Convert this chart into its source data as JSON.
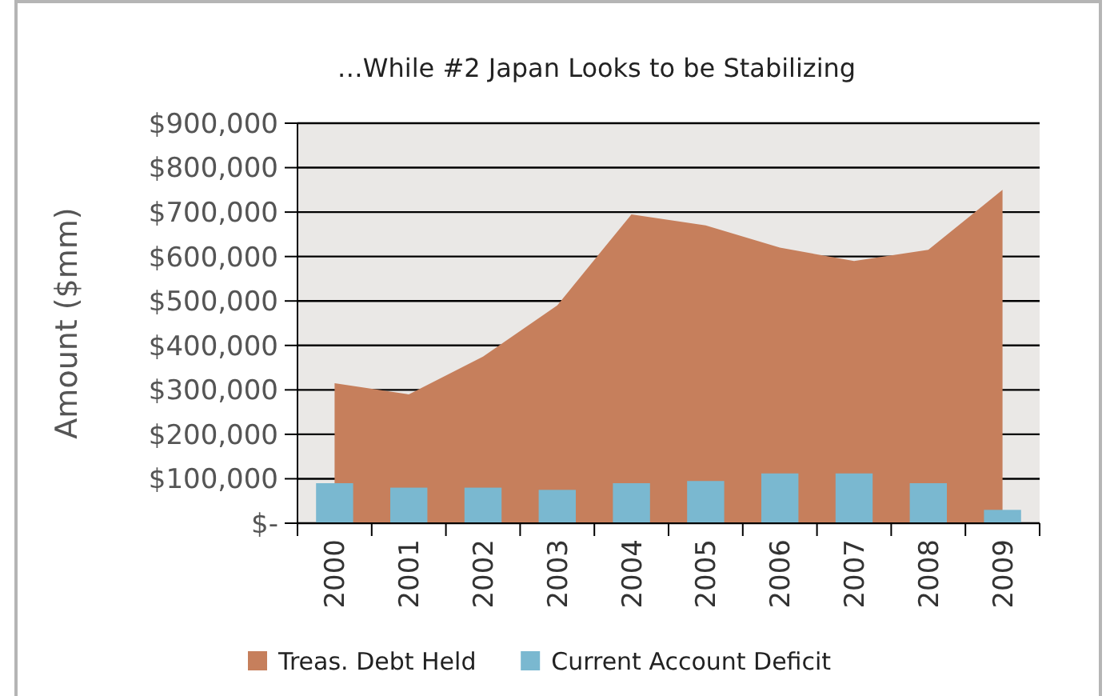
{
  "chart_data": {
    "type": "bar",
    "title": "…While #2 Japan Looks to be Stabilizing",
    "ylabel": "Amount ($mm)",
    "categories": [
      "2000",
      "2001",
      "2002",
      "2003",
      "2004",
      "2005",
      "2006",
      "2007",
      "2008",
      "2009"
    ],
    "series": [
      {
        "name": "Treas. Debt Held",
        "type": "area",
        "color": "#c67f5c",
        "values": [
          315000,
          290000,
          375000,
          490000,
          695000,
          670000,
          620000,
          590000,
          615000,
          750000
        ]
      },
      {
        "name": "Current Account Deficit",
        "color": "#7ab8d0",
        "values": [
          90000,
          80000,
          80000,
          75000,
          90000,
          95000,
          112000,
          112000,
          90000,
          30000
        ]
      }
    ],
    "ylim": [
      0,
      900000
    ],
    "yticks": [
      {
        "value": 0,
        "label": "$-"
      },
      {
        "value": 100000,
        "label": "$100,000"
      },
      {
        "value": 200000,
        "label": "$200,000"
      },
      {
        "value": 300000,
        "label": "$300,000"
      },
      {
        "value": 400000,
        "label": "$400,000"
      },
      {
        "value": 500000,
        "label": "$500,000"
      },
      {
        "value": 600000,
        "label": "$600,000"
      },
      {
        "value": 700000,
        "label": "$700,000"
      },
      {
        "value": 800000,
        "label": "$800,000"
      },
      {
        "value": 900000,
        "label": "$900,000"
      }
    ],
    "grid": "y",
    "legend": "bottom"
  }
}
